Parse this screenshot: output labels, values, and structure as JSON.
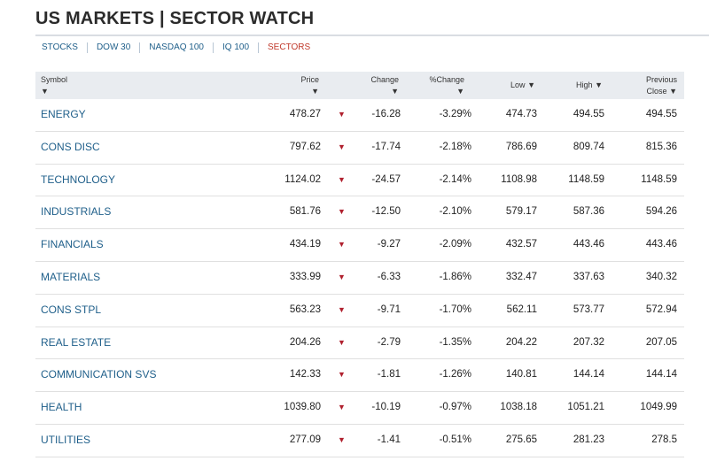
{
  "page": {
    "title": "US MARKETS | SECTOR WATCH"
  },
  "tabs": [
    {
      "label": "STOCKS",
      "active": false
    },
    {
      "label": "DOW 30",
      "active": false
    },
    {
      "label": "NASDAQ 100",
      "active": false
    },
    {
      "label": "IQ 100",
      "active": false
    },
    {
      "label": "SECTORS",
      "active": true
    }
  ],
  "table": {
    "headers": {
      "symbol": "Symbol",
      "price": "Price",
      "change": "Change",
      "pct_change": "%Change",
      "low": "Low",
      "high": "High",
      "prev_line1": "Previous",
      "prev_line2": "Close",
      "sort_arrow": "▼"
    },
    "direction_glyph": "▼",
    "rows": [
      {
        "symbol": "ENERGY",
        "price": "478.27",
        "change": "-16.28",
        "pct": "-3.29%",
        "low": "474.73",
        "high": "494.55",
        "prev": "494.55"
      },
      {
        "symbol": "CONS DISC",
        "price": "797.62",
        "change": "-17.74",
        "pct": "-2.18%",
        "low": "786.69",
        "high": "809.74",
        "prev": "815.36"
      },
      {
        "symbol": "TECHNOLOGY",
        "price": "1124.02",
        "change": "-24.57",
        "pct": "-2.14%",
        "low": "1108.98",
        "high": "1148.59",
        "prev": "1148.59"
      },
      {
        "symbol": "INDUSTRIALS",
        "price": "581.76",
        "change": "-12.50",
        "pct": "-2.10%",
        "low": "579.17",
        "high": "587.36",
        "prev": "594.26"
      },
      {
        "symbol": "FINANCIALS",
        "price": "434.19",
        "change": "-9.27",
        "pct": "-2.09%",
        "low": "432.57",
        "high": "443.46",
        "prev": "443.46"
      },
      {
        "symbol": "MATERIALS",
        "price": "333.99",
        "change": "-6.33",
        "pct": "-1.86%",
        "low": "332.47",
        "high": "337.63",
        "prev": "340.32"
      },
      {
        "symbol": "CONS STPL",
        "price": "563.23",
        "change": "-9.71",
        "pct": "-1.70%",
        "low": "562.11",
        "high": "573.77",
        "prev": "572.94"
      },
      {
        "symbol": "REAL ESTATE",
        "price": "204.26",
        "change": "-2.79",
        "pct": "-1.35%",
        "low": "204.22",
        "high": "207.32",
        "prev": "207.05"
      },
      {
        "symbol": "COMMUNICATION SVS",
        "price": "142.33",
        "change": "-1.81",
        "pct": "-1.26%",
        "low": "140.81",
        "high": "144.14",
        "prev": "144.14"
      },
      {
        "symbol": "HEALTH",
        "price": "1039.80",
        "change": "-10.19",
        "pct": "-0.97%",
        "low": "1038.18",
        "high": "1051.21",
        "prev": "1049.99"
      },
      {
        "symbol": "UTILITIES",
        "price": "277.09",
        "change": "-1.41",
        "pct": "-0.51%",
        "low": "275.65",
        "high": "281.23",
        "prev": "278.5"
      }
    ]
  },
  "colors": {
    "link": "#1f5f8a",
    "active_tab": "#c0392b",
    "down_arrow": "#b0202e",
    "header_bg": "#e9ecf0"
  }
}
